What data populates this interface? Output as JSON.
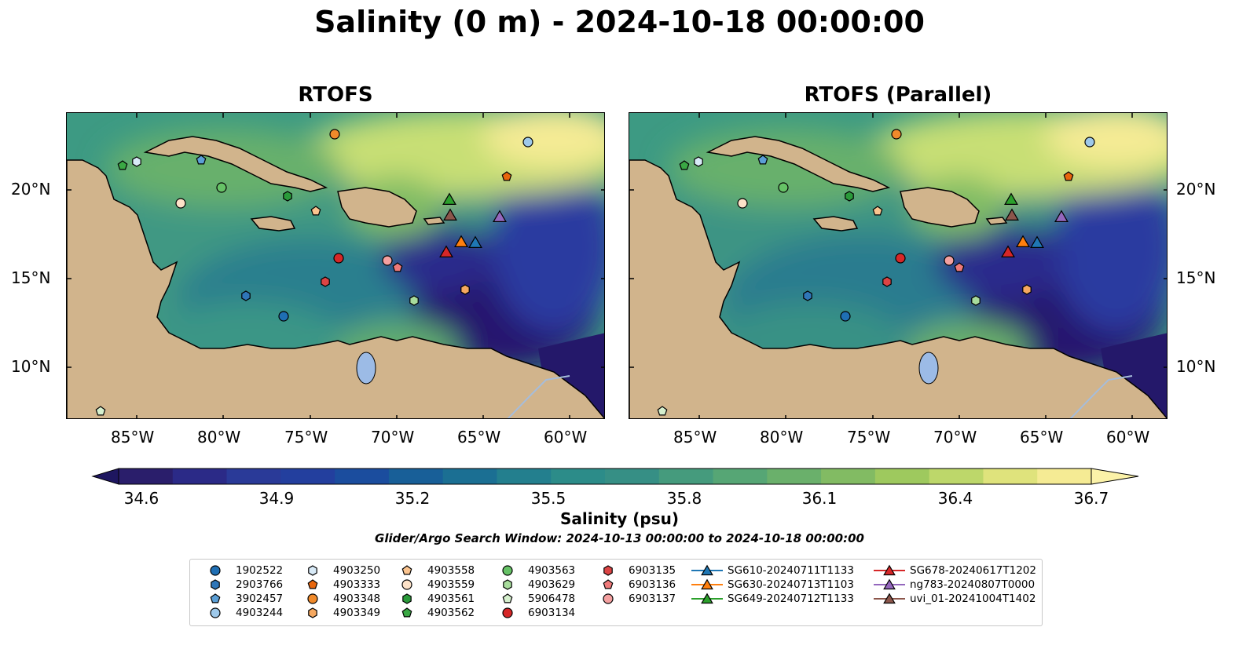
{
  "title": "Salinity (0 m) - 2024-10-18 00:00:00",
  "panels": [
    {
      "title": "RTOFS"
    },
    {
      "title": "RTOFS (Parallel)"
    }
  ],
  "axes": {
    "lat_labels": [
      "20°N",
      "15°N",
      "10°N"
    ],
    "lon_labels": [
      "85°W",
      "80°W",
      "75°W",
      "70°W",
      "65°W",
      "60°W"
    ]
  },
  "colorbar": {
    "label": "Salinity (psu)",
    "ticks": [
      "34.6",
      "34.9",
      "35.2",
      "35.5",
      "35.8",
      "36.1",
      "36.4",
      "36.7"
    ],
    "min": 34.6,
    "max": 36.7,
    "extend": "both",
    "colors": [
      "#2a1e6b",
      "#2b2a87",
      "#2a3a98",
      "#233f9e",
      "#1b4d9e",
      "#185f98",
      "#1b6f93",
      "#237f8e",
      "#2c8c89",
      "#368f85",
      "#459b7d",
      "#56a675",
      "#6ab06b",
      "#82bb63",
      "#9ec95e",
      "#bdd76a",
      "#dfe37c",
      "#f5eb94"
    ]
  },
  "search_window": "Glider/Argo Search Window: 2024-10-13 00:00:00 to 2024-10-18 00:00:00",
  "map_colors": {
    "land": "#d1b48c",
    "lake": "#9cbbe6",
    "river": "#a6bddb",
    "low_salinity": "#24186a",
    "mid_salinity": "#3d9a83",
    "high_salinity": "#f5eb94"
  },
  "legend": [
    {
      "label": "1902522",
      "shape": "circle",
      "color": "#1f6fb4"
    },
    {
      "label": "2903766",
      "shape": "hexagon",
      "color": "#2f76b8"
    },
    {
      "label": "3902457",
      "shape": "pentagon",
      "color": "#5b9fd6"
    },
    {
      "label": "4903244",
      "shape": "circle",
      "color": "#9ec9ea"
    },
    {
      "label": "4903250",
      "shape": "hexagon",
      "color": "#d8eaf7"
    },
    {
      "label": "4903333",
      "shape": "pentagon",
      "color": "#e8660d"
    },
    {
      "label": "4903348",
      "shape": "circle",
      "color": "#f08a2b"
    },
    {
      "label": "4903349",
      "shape": "hexagon",
      "color": "#f5a860"
    },
    {
      "label": "4903558",
      "shape": "pentagon",
      "color": "#fbc48f"
    },
    {
      "label": "4903559",
      "shape": "circle",
      "color": "#fde2c8"
    },
    {
      "label": "4903561",
      "shape": "hexagon",
      "color": "#2a9a3a"
    },
    {
      "label": "4903562",
      "shape": "pentagon",
      "color": "#3aa844"
    },
    {
      "label": "4903563",
      "shape": "circle",
      "color": "#66c266"
    },
    {
      "label": "4903629",
      "shape": "hexagon",
      "color": "#a8dc9c"
    },
    {
      "label": "5906478",
      "shape": "pentagon",
      "color": "#d6f0ce"
    },
    {
      "label": "6903134",
      "shape": "circle",
      "color": "#d62728"
    },
    {
      "label": "6903135",
      "shape": "hexagon",
      "color": "#dc4444"
    },
    {
      "label": "6903136",
      "shape": "pentagon",
      "color": "#ef7a7a"
    },
    {
      "label": "6903137",
      "shape": "circle",
      "color": "#f4a0a0"
    },
    {
      "label": "SG610-20240711T1133",
      "shape": "triangle",
      "color": "#1f77b4"
    },
    {
      "label": "SG630-20240713T1103",
      "shape": "triangle",
      "color": "#ff7f0e"
    },
    {
      "label": "SG649-20240712T1133",
      "shape": "triangle",
      "color": "#2ca02c"
    },
    {
      "label": "SG678-20240617T1202",
      "shape": "triangle",
      "color": "#d62728"
    },
    {
      "label": "ng783-20240807T0000",
      "shape": "triangle",
      "color": "#9467bd"
    },
    {
      "label": "uvi_01-20241004T1402",
      "shape": "triangle",
      "color": "#8c564b"
    }
  ]
}
